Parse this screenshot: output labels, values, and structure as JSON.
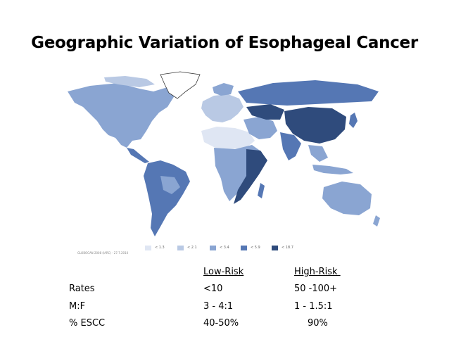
{
  "slide": {
    "title": "Geographic Variation of Esophageal Cancer"
  },
  "map": {
    "credit": "GLOBOCAN 2008 (IARC) - 27.7.2010",
    "legend": [
      {
        "label": "< 1.3",
        "color": "#dfe6f3"
      },
      {
        "label": "< 2.1",
        "color": "#b9c9e4"
      },
      {
        "label": "< 3.4",
        "color": "#8aa5d2"
      },
      {
        "label": "< 5.9",
        "color": "#5577b4"
      },
      {
        "label": "< 18.7",
        "color": "#2f4b7c"
      }
    ]
  },
  "table": {
    "headers": [
      "Low-Risk",
      "High-Risk "
    ],
    "rows": [
      {
        "label": "Rates",
        "low": "<10",
        "high": "50 -100+"
      },
      {
        "label": "M:F",
        "low": "3 - 4:1",
        "high": "1 - 1.5:1"
      },
      {
        "label": "% ESCC",
        "low": "40-50%",
        "high": "90%"
      }
    ]
  }
}
